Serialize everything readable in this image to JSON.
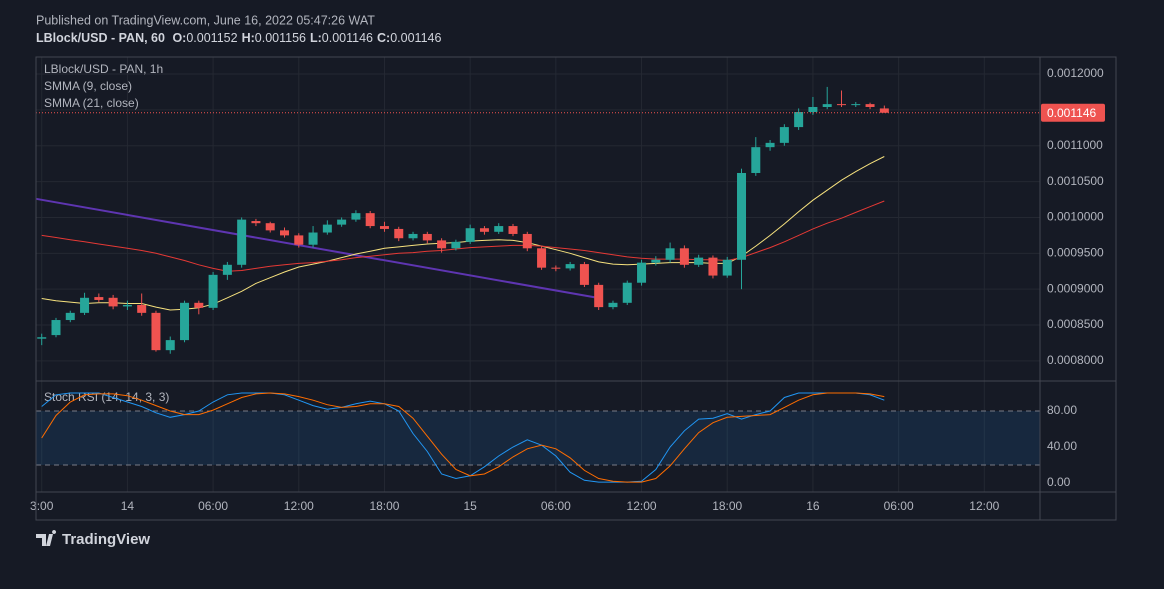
{
  "header": {
    "published": "Published on TradingView.com, June 16, 2022 05:47:26 WAT",
    "symbol": "LBlock/USD - PAN, 60",
    "ohlc": [
      {
        "key": "O:",
        "value": "0.001152"
      },
      {
        "key": "H:",
        "value": "0.001156"
      },
      {
        "key": "L:",
        "value": "0.001146"
      },
      {
        "key": "C:",
        "value": "0.001146"
      }
    ]
  },
  "footer": {
    "logo": "TradingView"
  },
  "chart_data": [
    {
      "type": "candlestick",
      "title": "LBlock/USD - PAN, 1h",
      "up_color": "#26a69a",
      "down_color": "#ef5350",
      "open": [
        0.000831,
        0.000836,
        0.000857,
        0.000867,
        0.000889,
        0.000888,
        0.000876,
        0.000878,
        0.000867,
        0.000815,
        0.000829,
        0.000881,
        0.000874,
        0.00092,
        0.000934,
        0.000995,
        0.000992,
        0.000982,
        0.000975,
        0.000962,
        0.000979,
        0.00099,
        0.000997,
        0.001006,
        0.000988,
        0.000984,
        0.000971,
        0.000977,
        0.000968,
        0.000957,
        0.000966,
        0.000985,
        0.00098,
        0.000988,
        0.000977,
        0.000957,
        0.00093,
        0.000929,
        0.000935,
        0.000906,
        0.000875,
        0.000881,
        0.000909,
        0.000937,
        0.000941,
        0.000957,
        0.000934,
        0.000944,
        0.000919,
        0.000941,
        0.001062,
        0.001098,
        0.001104,
        0.001126,
        0.001147,
        0.001154,
        0.001158,
        0.001157,
        0.001158,
        0.001152
      ],
      "high": [
        0.000838,
        0.00086,
        0.00087,
        0.000895,
        0.000894,
        0.000892,
        0.000884,
        0.000894,
        0.00087,
        0.000834,
        0.000884,
        0.000884,
        0.000924,
        0.000938,
        0.001,
        0.000998,
        0.000994,
        0.000986,
        0.000978,
        0.000988,
        0.000996,
        0.001,
        0.00101,
        0.001009,
        0.000994,
        0.000987,
        0.00098,
        0.00098,
        0.000971,
        0.000969,
        0.00099,
        0.000988,
        0.000992,
        0.000991,
        0.00098,
        0.00096,
        0.000933,
        0.000938,
        0.000938,
        0.000909,
        0.000884,
        0.000912,
        0.000941,
        0.000946,
        0.000965,
        0.000961,
        0.000948,
        0.000947,
        0.000945,
        0.001068,
        0.001112,
        0.001108,
        0.00113,
        0.001152,
        0.001168,
        0.001182,
        0.001177,
        0.001161,
        0.00116,
        0.001156
      ],
      "low": [
        0.000822,
        0.000833,
        0.000854,
        0.000864,
        0.000882,
        0.000872,
        0.000871,
        0.000863,
        0.000813,
        0.00081,
        0.000826,
        0.000865,
        0.000871,
        0.000913,
        0.00093,
        0.000988,
        0.000979,
        0.000972,
        0.000958,
        0.000958,
        0.000976,
        0.000987,
        0.000994,
        0.000985,
        0.00098,
        0.000967,
        0.000968,
        0.000964,
        0.000951,
        0.000954,
        0.000963,
        0.000976,
        0.000977,
        0.000974,
        0.000953,
        0.000927,
        0.000925,
        0.000926,
        0.000903,
        0.000871,
        0.000872,
        0.000878,
        0.000905,
        0.000933,
        0.000937,
        0.00093,
        0.000931,
        0.000915,
        0.000916,
        0.0009,
        0.001058,
        0.001093,
        0.0011,
        0.001122,
        0.001143,
        0.001151,
        0.001154,
        0.001154,
        0.001151,
        0.001146
      ],
      "close": [
        0.000833,
        0.000857,
        0.000867,
        0.000888,
        0.000885,
        0.000876,
        0.000878,
        0.000867,
        0.000815,
        0.000829,
        0.000881,
        0.000874,
        0.00092,
        0.000934,
        0.000997,
        0.000992,
        0.000982,
        0.000975,
        0.000962,
        0.000979,
        0.00099,
        0.000997,
        0.001006,
        0.000988,
        0.000984,
        0.000971,
        0.000977,
        0.000968,
        0.000957,
        0.000966,
        0.000985,
        0.00098,
        0.000988,
        0.000977,
        0.000957,
        0.00093,
        0.000929,
        0.000935,
        0.000906,
        0.000875,
        0.000881,
        0.000909,
        0.000937,
        0.000941,
        0.000957,
        0.000934,
        0.000944,
        0.000919,
        0.000941,
        0.001062,
        0.001098,
        0.001104,
        0.001126,
        0.001147,
        0.001154,
        0.001158,
        0.001157,
        0.001158,
        0.001154,
        0.001146
      ],
      "series": [
        {
          "name": "SMMA (9, close)",
          "color": "#f7e27e",
          "values": [
            0.000887,
            0.000884,
            0.000882,
            0.00088,
            0.000881,
            0.000881,
            0.00088,
            0.00088,
            0.000875,
            0.000871,
            0.000872,
            0.000874,
            0.000879,
            0.000888,
            0.000897,
            0.000908,
            0.000916,
            0.000924,
            0.000931,
            0.000935,
            0.000939,
            0.000944,
            0.000949,
            0.000953,
            0.000957,
            0.000959,
            0.000961,
            0.000963,
            0.000964,
            0.000965,
            0.000967,
            0.000968,
            0.000969,
            0.000968,
            0.000965,
            0.00096,
            0.000955,
            0.00095,
            0.000944,
            0.000938,
            0.000935,
            0.000934,
            0.000935,
            0.000936,
            0.000937,
            0.000937,
            0.000937,
            0.000936,
            0.000936,
            0.000946,
            0.00096,
            0.000975,
            0.000991,
            0.001008,
            0.001024,
            0.001038,
            0.001052,
            0.001064,
            0.001075,
            0.001085
          ]
        },
        {
          "name": "SMMA (21, close)",
          "color": "#e53935",
          "values": [
            0.000975,
            0.000972,
            0.000969,
            0.000966,
            0.000963,
            0.00096,
            0.000957,
            0.000954,
            0.00095,
            0.000945,
            0.00094,
            0.000934,
            0.000929,
            0.000925,
            0.000926,
            0.000929,
            0.000932,
            0.000934,
            0.000936,
            0.000937,
            0.000939,
            0.000941,
            0.000944,
            0.000946,
            0.000948,
            0.00095,
            0.000951,
            0.000953,
            0.000954,
            0.000956,
            0.000958,
            0.000959,
            0.00096,
            0.000961,
            0.000961,
            0.00096,
            0.000958,
            0.000956,
            0.000954,
            0.000951,
            0.000948,
            0.000945,
            0.000943,
            0.000942,
            0.000942,
            0.000942,
            0.000941,
            0.000941,
            0.00094,
            0.000944,
            0.000951,
            0.000958,
            0.000966,
            0.000975,
            0.000984,
            0.000992,
            0.000999,
            0.001007,
            0.001015,
            0.001023
          ]
        }
      ],
      "trendline": {
        "x": [
          -0.4,
          38.9
        ],
        "values": [
          0.001026,
          0.000888
        ],
        "color": "#5e35b1"
      },
      "last_price": {
        "value": 0.001146,
        "label": "0.001146",
        "color": "#ef5350"
      },
      "xlim": [
        -0.4,
        69.9
      ],
      "ylim": [
        0.000772,
        0.0012237
      ],
      "yticks": [
        {
          "value": 0.0008,
          "label": "0.0008000"
        },
        {
          "value": 0.00085,
          "label": "0.0008500"
        },
        {
          "value": 0.0009,
          "label": "0.0009000"
        },
        {
          "value": 0.00095,
          "label": "0.0009500"
        },
        {
          "value": 0.001,
          "label": "0.0010000"
        },
        {
          "value": 0.00105,
          "label": "0.0010500"
        },
        {
          "value": 0.0011,
          "label": "0.0011000"
        },
        {
          "value": 0.00115,
          "label": "0.0011500"
        },
        {
          "value": 0.0012,
          "label": "0.0012000"
        }
      ],
      "grid": true
    },
    {
      "type": "line",
      "title": "Stoch RSI (14, 14, 3, 3)",
      "series": [
        {
          "name": "K",
          "color": "#2196f3",
          "values": [
            85,
            98,
            100,
            100,
            100,
            95,
            90,
            85,
            78,
            73,
            76,
            80,
            90,
            98,
            100,
            100,
            100,
            98,
            92,
            86,
            82,
            84,
            88,
            91,
            88,
            80,
            55,
            35,
            10,
            5,
            8,
            18,
            30,
            40,
            48,
            42,
            30,
            12,
            3,
            1,
            1,
            1,
            2,
            15,
            40,
            58,
            71,
            72,
            77,
            71,
            76,
            80,
            95,
            100,
            100,
            100,
            100,
            100,
            98,
            92
          ]
        },
        {
          "name": "D",
          "color": "#ff6d00",
          "values": [
            50,
            75,
            90,
            98,
            99,
            99,
            97,
            92,
            86,
            80,
            76,
            76,
            81,
            88,
            95,
            99,
            100,
            99,
            96,
            92,
            87,
            84,
            85,
            88,
            88,
            85,
            72,
            52,
            32,
            15,
            8,
            10,
            18,
            29,
            38,
            42,
            38,
            28,
            14,
            5,
            2,
            1,
            1,
            5,
            19,
            38,
            56,
            67,
            73,
            74,
            75,
            76,
            84,
            92,
            98,
            100,
            100,
            100,
            99,
            96
          ]
        }
      ],
      "bands": [
        20,
        80
      ],
      "xlim": [
        -0.4,
        69.9
      ],
      "ylim": [
        -10,
        113.3
      ],
      "yticks": [
        {
          "value": 0,
          "label": "0.00"
        },
        {
          "value": 40,
          "label": "40.00"
        },
        {
          "value": 80,
          "label": "80.00"
        }
      ],
      "xticks": [
        {
          "value": 0,
          "label": "3:00"
        },
        {
          "value": 6,
          "label": "14"
        },
        {
          "value": 12,
          "label": "06:00"
        },
        {
          "value": 18,
          "label": "12:00"
        },
        {
          "value": 24,
          "label": "18:00"
        },
        {
          "value": 30,
          "label": "15"
        },
        {
          "value": 36,
          "label": "06:00"
        },
        {
          "value": 42,
          "label": "12:00"
        },
        {
          "value": 48,
          "label": "18:00"
        },
        {
          "value": 54,
          "label": "16"
        },
        {
          "value": 60,
          "label": "06:00"
        },
        {
          "value": 66,
          "label": "12:00"
        }
      ],
      "grid": true
    }
  ]
}
